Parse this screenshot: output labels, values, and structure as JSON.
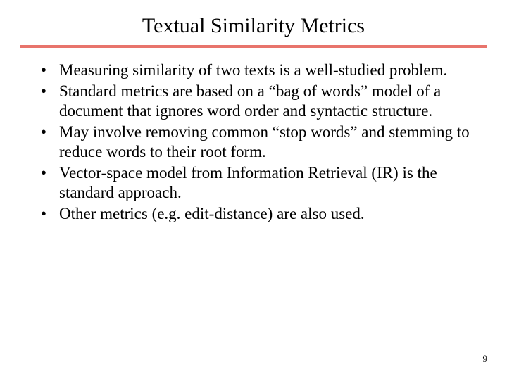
{
  "slide": {
    "title": "Textual Similarity Metrics",
    "title_color": "#000000",
    "title_fontsize": 30,
    "divider_color": "#e8746c",
    "divider_height": 4,
    "bullets": [
      "Measuring similarity of two texts is a well-studied problem.",
      "Standard metrics are based on a “bag of words” model of a document that ignores word order and syntactic structure.",
      "May involve removing common “stop words” and stemming to reduce words to their root form.",
      "Vector-space model from Information Retrieval (IR) is the standard approach.",
      "Other metrics (e.g. edit-distance) are also used."
    ],
    "body_fontsize": 23,
    "body_color": "#000000",
    "background_color": "#ffffff",
    "page_number": "9",
    "page_number_fontsize": 13
  }
}
